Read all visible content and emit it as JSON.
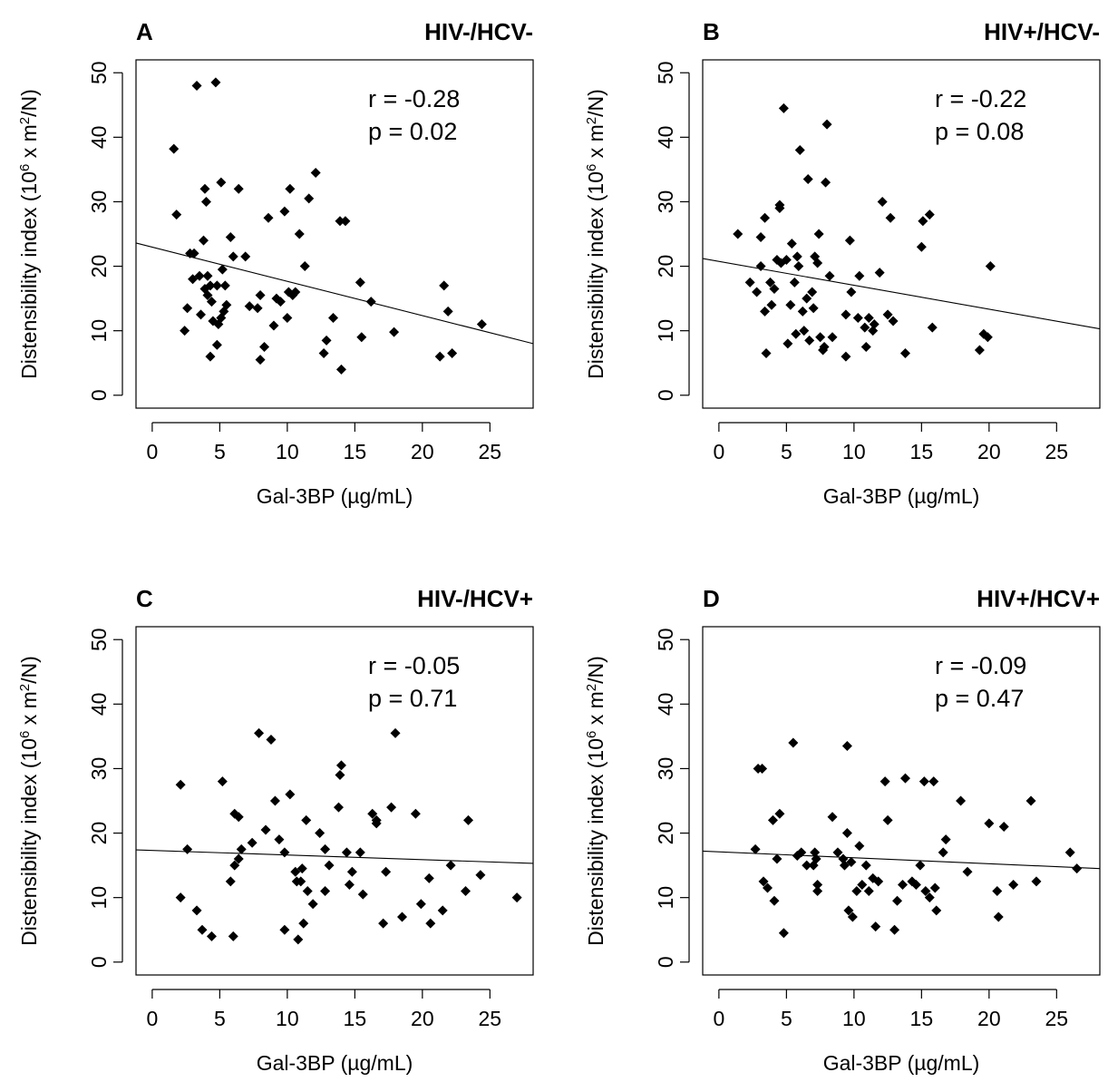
{
  "chart_data": [
    {
      "type": "scatter",
      "panel": "A",
      "title": "HIV-/HCV-",
      "xlabel": "Gal-3BP (µg/mL)",
      "ylabel": "Distensibility index (10^6 x m^2/N)",
      "xlim": [
        -1.2,
        28.2
      ],
      "ylim": [
        -2,
        52
      ],
      "xticks": [
        0,
        5,
        10,
        15,
        20,
        25
      ],
      "yticks": [
        0,
        10,
        20,
        30,
        40,
        50
      ],
      "r_text": "r = -0.28",
      "p_text": "p = 0.02",
      "fit": {
        "x": [
          -1.2,
          28.2
        ],
        "y": [
          23.6,
          8.0
        ]
      },
      "points": [
        [
          1.6,
          38.2
        ],
        [
          1.8,
          28.0
        ],
        [
          2.4,
          10.0
        ],
        [
          2.6,
          13.5
        ],
        [
          2.8,
          22.0
        ],
        [
          3.0,
          18.0
        ],
        [
          3.1,
          22.0
        ],
        [
          3.3,
          48.0
        ],
        [
          3.5,
          18.5
        ],
        [
          3.6,
          12.5
        ],
        [
          3.8,
          24.0
        ],
        [
          3.9,
          32.0
        ],
        [
          3.9,
          16.5
        ],
        [
          4.0,
          30.0
        ],
        [
          4.1,
          15.5
        ],
        [
          4.1,
          18.5
        ],
        [
          4.3,
          17.0
        ],
        [
          4.3,
          6.0
        ],
        [
          4.4,
          14.5
        ],
        [
          4.5,
          11.5
        ],
        [
          4.7,
          48.5
        ],
        [
          4.8,
          17.0
        ],
        [
          4.8,
          7.8
        ],
        [
          4.9,
          11.0
        ],
        [
          5.1,
          12.0
        ],
        [
          5.1,
          33.0
        ],
        [
          5.2,
          19.5
        ],
        [
          5.3,
          13.0
        ],
        [
          5.4,
          17.0
        ],
        [
          5.5,
          14.0
        ],
        [
          5.8,
          24.5
        ],
        [
          6.0,
          21.5
        ],
        [
          6.4,
          32.0
        ],
        [
          6.9,
          21.5
        ],
        [
          7.2,
          13.8
        ],
        [
          7.8,
          13.5
        ],
        [
          8.0,
          5.5
        ],
        [
          8.0,
          15.5
        ],
        [
          8.3,
          7.5
        ],
        [
          8.6,
          27.5
        ],
        [
          9.0,
          10.8
        ],
        [
          9.2,
          15.0
        ],
        [
          9.5,
          14.5
        ],
        [
          9.8,
          28.5
        ],
        [
          10.0,
          12.0
        ],
        [
          10.1,
          16.0
        ],
        [
          10.2,
          32.0
        ],
        [
          10.4,
          15.5
        ],
        [
          10.6,
          16.0
        ],
        [
          10.9,
          25.0
        ],
        [
          11.3,
          20.0
        ],
        [
          11.6,
          30.5
        ],
        [
          12.1,
          34.5
        ],
        [
          12.7,
          6.5
        ],
        [
          12.9,
          8.5
        ],
        [
          13.4,
          12.0
        ],
        [
          13.9,
          27.0
        ],
        [
          14.0,
          4.0
        ],
        [
          14.3,
          27.0
        ],
        [
          15.4,
          17.5
        ],
        [
          15.5,
          9.0
        ],
        [
          16.2,
          14.5
        ],
        [
          17.9,
          9.8
        ],
        [
          21.3,
          6.0
        ],
        [
          21.6,
          17.0
        ],
        [
          21.9,
          13.0
        ],
        [
          22.2,
          6.5
        ],
        [
          24.4,
          11.0
        ]
      ]
    },
    {
      "type": "scatter",
      "panel": "B",
      "title": "HIV+/HCV-",
      "xlabel": "Gal-3BP (µg/mL)",
      "ylabel": "Distensibility index (10^6 x m^2/N)",
      "xlim": [
        -1.2,
        28.2
      ],
      "ylim": [
        -2,
        52
      ],
      "xticks": [
        0,
        5,
        10,
        15,
        20,
        25
      ],
      "yticks": [
        0,
        10,
        20,
        30,
        40,
        50
      ],
      "r_text": "r = -0.22",
      "p_text": "p = 0.08",
      "fit": {
        "x": [
          -1.2,
          28.2
        ],
        "y": [
          21.2,
          10.3
        ]
      },
      "points": [
        [
          1.4,
          25.0
        ],
        [
          2.3,
          17.5
        ],
        [
          2.8,
          16.0
        ],
        [
          3.1,
          24.5
        ],
        [
          3.1,
          20.0
        ],
        [
          3.4,
          13.0
        ],
        [
          3.4,
          27.5
        ],
        [
          3.5,
          6.5
        ],
        [
          3.8,
          17.5
        ],
        [
          3.9,
          14.0
        ],
        [
          4.1,
          16.5
        ],
        [
          4.3,
          21.0
        ],
        [
          4.5,
          29.5
        ],
        [
          4.5,
          29.0
        ],
        [
          4.6,
          20.5
        ],
        [
          4.8,
          44.5
        ],
        [
          5.0,
          21.0
        ],
        [
          5.1,
          8.0
        ],
        [
          5.3,
          14.0
        ],
        [
          5.4,
          23.5
        ],
        [
          5.6,
          17.5
        ],
        [
          5.7,
          9.5
        ],
        [
          5.8,
          21.5
        ],
        [
          5.9,
          20.0
        ],
        [
          6.0,
          38.0
        ],
        [
          6.2,
          13.0
        ],
        [
          6.3,
          10.0
        ],
        [
          6.5,
          15.0
        ],
        [
          6.6,
          33.5
        ],
        [
          6.7,
          8.5
        ],
        [
          6.9,
          16.0
        ],
        [
          7.0,
          13.5
        ],
        [
          7.1,
          21.5
        ],
        [
          7.3,
          20.5
        ],
        [
          7.4,
          25.0
        ],
        [
          7.5,
          9.0
        ],
        [
          7.7,
          7.0
        ],
        [
          7.8,
          7.5
        ],
        [
          7.9,
          33.0
        ],
        [
          8.0,
          42.0
        ],
        [
          8.2,
          18.5
        ],
        [
          8.4,
          9.0
        ],
        [
          9.4,
          12.5
        ],
        [
          9.4,
          6.0
        ],
        [
          9.7,
          24.0
        ],
        [
          9.8,
          16.0
        ],
        [
          10.3,
          12.0
        ],
        [
          10.4,
          18.5
        ],
        [
          10.8,
          10.5
        ],
        [
          10.9,
          7.5
        ],
        [
          11.1,
          12.0
        ],
        [
          11.4,
          10.0
        ],
        [
          11.5,
          11.0
        ],
        [
          11.9,
          19.0
        ],
        [
          12.1,
          30.0
        ],
        [
          12.5,
          12.5
        ],
        [
          12.7,
          27.5
        ],
        [
          12.9,
          11.5
        ],
        [
          13.8,
          6.5
        ],
        [
          15.0,
          23.0
        ],
        [
          15.1,
          27.0
        ],
        [
          15.6,
          28.0
        ],
        [
          15.8,
          10.5
        ],
        [
          19.3,
          7.0
        ],
        [
          19.6,
          9.5
        ],
        [
          19.9,
          9.0
        ],
        [
          20.1,
          20.0
        ]
      ]
    },
    {
      "type": "scatter",
      "panel": "C",
      "title": "HIV-/HCV+",
      "xlabel": "Gal-3BP (µg/mL)",
      "ylabel": "Distensibility index (10^6 x m^2/N)",
      "xlim": [
        -1.2,
        28.2
      ],
      "ylim": [
        -2,
        52
      ],
      "xticks": [
        0,
        5,
        10,
        15,
        20,
        25
      ],
      "yticks": [
        0,
        10,
        20,
        30,
        40,
        50
      ],
      "r_text": "r = -0.05",
      "p_text": "p = 0.71",
      "fit": {
        "x": [
          -1.2,
          28.2
        ],
        "y": [
          17.4,
          15.3
        ]
      },
      "points": [
        [
          2.1,
          10.0
        ],
        [
          2.1,
          27.5
        ],
        [
          2.6,
          17.5
        ],
        [
          3.3,
          8.0
        ],
        [
          3.7,
          5.0
        ],
        [
          4.4,
          4.0
        ],
        [
          5.2,
          28.0
        ],
        [
          5.8,
          12.5
        ],
        [
          6.0,
          4.0
        ],
        [
          6.1,
          23.0
        ],
        [
          6.1,
          15.0
        ],
        [
          6.4,
          16.0
        ],
        [
          6.4,
          22.5
        ],
        [
          6.6,
          17.5
        ],
        [
          7.4,
          18.5
        ],
        [
          7.9,
          35.5
        ],
        [
          8.4,
          20.5
        ],
        [
          8.8,
          34.5
        ],
        [
          9.1,
          25.0
        ],
        [
          9.4,
          19.0
        ],
        [
          9.8,
          17.0
        ],
        [
          9.8,
          5.0
        ],
        [
          10.2,
          26.0
        ],
        [
          10.6,
          14.0
        ],
        [
          10.7,
          12.5
        ],
        [
          10.8,
          3.5
        ],
        [
          11.0,
          12.5
        ],
        [
          11.1,
          14.5
        ],
        [
          11.2,
          6.0
        ],
        [
          11.4,
          22.0
        ],
        [
          11.5,
          11.0
        ],
        [
          11.9,
          9.0
        ],
        [
          12.4,
          20.0
        ],
        [
          12.8,
          17.5
        ],
        [
          12.8,
          11.0
        ],
        [
          13.1,
          15.0
        ],
        [
          13.8,
          24.0
        ],
        [
          13.9,
          29.0
        ],
        [
          14.0,
          30.5
        ],
        [
          14.4,
          17.0
        ],
        [
          14.6,
          12.0
        ],
        [
          14.8,
          14.0
        ],
        [
          15.4,
          17.0
        ],
        [
          15.6,
          10.5
        ],
        [
          16.3,
          23.0
        ],
        [
          16.6,
          22.0
        ],
        [
          16.6,
          21.5
        ],
        [
          17.1,
          6.0
        ],
        [
          17.3,
          14.0
        ],
        [
          17.7,
          24.0
        ],
        [
          18.0,
          35.5
        ],
        [
          18.5,
          7.0
        ],
        [
          19.5,
          23.0
        ],
        [
          19.9,
          9.0
        ],
        [
          20.5,
          13.0
        ],
        [
          20.6,
          6.0
        ],
        [
          21.5,
          8.0
        ],
        [
          22.1,
          15.0
        ],
        [
          23.2,
          11.0
        ],
        [
          23.4,
          22.0
        ],
        [
          24.3,
          13.5
        ],
        [
          27.0,
          10.0
        ]
      ]
    },
    {
      "type": "scatter",
      "panel": "D",
      "title": "HIV+/HCV+",
      "xlabel": "Gal-3BP (µg/mL)",
      "ylabel": "Distensibility index (10^6 x m^2/N)",
      "xlim": [
        -1.2,
        28.2
      ],
      "ylim": [
        -2,
        52
      ],
      "xticks": [
        0,
        5,
        10,
        15,
        20,
        25
      ],
      "yticks": [
        0,
        10,
        20,
        30,
        40,
        50
      ],
      "r_text": "r = -0.09",
      "p_text": "p = 0.47",
      "fit": {
        "x": [
          -1.2,
          28.2
        ],
        "y": [
          17.2,
          14.5
        ]
      },
      "points": [
        [
          2.7,
          17.5
        ],
        [
          2.9,
          30.0
        ],
        [
          3.2,
          30.0
        ],
        [
          3.3,
          12.5
        ],
        [
          3.6,
          11.5
        ],
        [
          4.0,
          22.0
        ],
        [
          4.1,
          9.5
        ],
        [
          4.3,
          16.0
        ],
        [
          4.5,
          23.0
        ],
        [
          4.8,
          4.5
        ],
        [
          5.5,
          34.0
        ],
        [
          5.8,
          16.5
        ],
        [
          6.1,
          17.0
        ],
        [
          6.5,
          15.0
        ],
        [
          7.0,
          15.0
        ],
        [
          7.1,
          17.0
        ],
        [
          7.2,
          16.0
        ],
        [
          7.3,
          12.0
        ],
        [
          7.3,
          11.0
        ],
        [
          8.4,
          22.5
        ],
        [
          8.8,
          17.0
        ],
        [
          9.2,
          16.0
        ],
        [
          9.3,
          15.0
        ],
        [
          9.5,
          33.5
        ],
        [
          9.5,
          20.0
        ],
        [
          9.6,
          8.0
        ],
        [
          9.8,
          15.5
        ],
        [
          9.9,
          7.0
        ],
        [
          10.2,
          11.0
        ],
        [
          10.4,
          18.0
        ],
        [
          10.6,
          12.0
        ],
        [
          10.9,
          15.0
        ],
        [
          11.1,
          11.0
        ],
        [
          11.4,
          13.0
        ],
        [
          11.6,
          5.5
        ],
        [
          11.8,
          12.5
        ],
        [
          12.3,
          28.0
        ],
        [
          12.5,
          22.0
        ],
        [
          13.0,
          5.0
        ],
        [
          13.2,
          9.5
        ],
        [
          13.6,
          12.0
        ],
        [
          13.8,
          28.5
        ],
        [
          14.3,
          12.5
        ],
        [
          14.6,
          12.0
        ],
        [
          14.9,
          15.0
        ],
        [
          15.2,
          28.0
        ],
        [
          15.3,
          11.0
        ],
        [
          15.6,
          10.0
        ],
        [
          15.9,
          28.0
        ],
        [
          16.0,
          11.5
        ],
        [
          16.1,
          8.0
        ],
        [
          16.6,
          17.0
        ],
        [
          16.8,
          19.0
        ],
        [
          17.9,
          25.0
        ],
        [
          18.4,
          14.0
        ],
        [
          20.0,
          21.5
        ],
        [
          20.6,
          11.0
        ],
        [
          20.7,
          7.0
        ],
        [
          21.1,
          21.0
        ],
        [
          21.8,
          12.0
        ],
        [
          23.1,
          25.0
        ],
        [
          23.5,
          12.5
        ],
        [
          26.0,
          17.0
        ],
        [
          26.5,
          14.5
        ]
      ]
    }
  ]
}
